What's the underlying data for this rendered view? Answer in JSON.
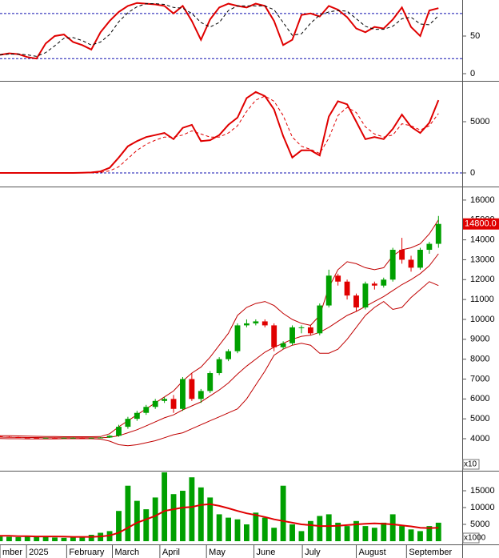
{
  "chart_data": [
    {
      "type": "line",
      "xlim": [
        0,
        50.6
      ],
      "ylim": [
        -8.5,
        97.9
      ],
      "yticks": [
        50,
        0
      ],
      "ref_lines": [
        80,
        20
      ],
      "ref_color": "#1010b0",
      "series": [
        {
          "color": "#e00000",
          "values": [
            25,
            27,
            26,
            22,
            20,
            40,
            50,
            52,
            42,
            38,
            32,
            55,
            70,
            82,
            90,
            94,
            93,
            92,
            90,
            80,
            90,
            70,
            45,
            72,
            88,
            93,
            90,
            88,
            93,
            90,
            70,
            38,
            45,
            78,
            80,
            76,
            90,
            85,
            75,
            60,
            55,
            62,
            60,
            72,
            88,
            62,
            50,
            84,
            87
          ]
        },
        {
          "color": "#000000",
          "dash": true,
          "values": [
            25,
            26,
            26,
            25,
            23,
            28,
            37,
            47,
            48,
            44,
            38,
            42,
            52,
            69,
            81,
            89,
            93,
            93,
            92,
            88,
            87,
            80,
            68,
            62,
            68,
            84,
            90,
            90,
            90,
            90,
            85,
            68,
            51,
            53,
            67,
            78,
            82,
            84,
            83,
            73,
            63,
            59,
            59,
            63,
            73,
            75,
            66,
            65,
            77
          ]
        }
      ]
    },
    {
      "type": "line",
      "xlim": [
        0,
        50.6
      ],
      "ylim": [
        -1250,
        8830
      ],
      "yticks": [
        5000,
        0
      ],
      "ref_lines": [
        0
      ],
      "ref_color": "#1010b0",
      "series": [
        {
          "color": "#e00000",
          "values": [
            0,
            0,
            0,
            0,
            0,
            0,
            0,
            0,
            0,
            20,
            50,
            150,
            500,
            1500,
            2600,
            3100,
            3500,
            3700,
            3900,
            3300,
            4400,
            4700,
            3100,
            3200,
            3700,
            4700,
            5400,
            7300,
            7900,
            7500,
            6200,
            3600,
            1500,
            2200,
            2200,
            1700,
            5500,
            7000,
            6700,
            5000,
            3300,
            3500,
            3300,
            4300,
            5700,
            4500,
            3900,
            4900,
            7100
          ]
        },
        {
          "color": "#e00000",
          "dash": true,
          "values": [
            0,
            0,
            0,
            0,
            0,
            0,
            0,
            0,
            0,
            0,
            10,
            50,
            200,
            600,
            1400,
            2200,
            2800,
            3200,
            3500,
            3500,
            3700,
            4100,
            3800,
            3500,
            3500,
            3900,
            4600,
            6000,
            7100,
            7500,
            7000,
            5600,
            3500,
            2600,
            2300,
            1900,
            3400,
            5600,
            6400,
            5900,
            4500,
            3800,
            3500,
            3700,
            4800,
            4600,
            4200,
            4600,
            5800
          ]
        }
      ]
    },
    {
      "type": "candlestick",
      "xlim": [
        0,
        50.6
      ],
      "ylim": [
        2390,
        16600
      ],
      "yticks": [
        16000,
        15000,
        14000,
        13000,
        12000,
        11000,
        10000,
        9000,
        8000,
        7000,
        6000,
        5000,
        4000
      ],
      "scale_label": "x10",
      "up_color": "#00a000",
      "down_color": "#e00000",
      "open": [
        4120,
        4100,
        4080,
        4060,
        4050,
        4040,
        4050,
        4040,
        4050,
        4050,
        4040,
        4050,
        4060,
        4150,
        4600,
        5000,
        5300,
        5600,
        5900,
        6000,
        5500,
        7000,
        6000,
        6400,
        7300,
        8000,
        8400,
        9700,
        9800,
        9900,
        9700,
        8600,
        8800,
        9600,
        9600,
        9300,
        10700,
        12200,
        11900,
        11200,
        10600,
        11800,
        11700,
        12000,
        13500,
        13000,
        12600,
        13500,
        13800
      ],
      "high": [
        4140,
        4120,
        4100,
        4080,
        4070,
        4060,
        4070,
        4060,
        4070,
        4070,
        4060,
        4080,
        4180,
        4700,
        5100,
        5400,
        5700,
        6000,
        6100,
        6200,
        7100,
        7300,
        6500,
        7400,
        8100,
        8500,
        9800,
        10000,
        10000,
        10000,
        9800,
        8900,
        9700,
        9700,
        9700,
        10800,
        12500,
        12300,
        12000,
        11300,
        11900,
        11900,
        12100,
        13600,
        14100,
        13200,
        13600,
        13900,
        15200
      ],
      "low": [
        4080,
        4060,
        4040,
        4030,
        4020,
        4020,
        4020,
        4020,
        4030,
        4020,
        4020,
        4030,
        4040,
        4100,
        4500,
        4900,
        5200,
        5500,
        5800,
        5300,
        5400,
        5900,
        5800,
        6300,
        7200,
        7900,
        8300,
        9600,
        9700,
        9600,
        8400,
        8500,
        8700,
        9300,
        9200,
        9200,
        10600,
        11700,
        11000,
        10400,
        10500,
        11500,
        11600,
        11900,
        12800,
        12400,
        12500,
        13300,
        13600
      ],
      "close": [
        4100,
        4080,
        4060,
        4050,
        4040,
        4050,
        4040,
        4050,
        4050,
        4040,
        4050,
        4060,
        4150,
        4600,
        5000,
        5300,
        5600,
        5900,
        6000,
        5500,
        7000,
        6000,
        6400,
        7300,
        8000,
        8400,
        9700,
        9800,
        9900,
        9700,
        8600,
        8800,
        9600,
        9600,
        9300,
        10700,
        12200,
        11900,
        11200,
        10600,
        11800,
        11700,
        12000,
        13500,
        13000,
        12600,
        13500,
        13800,
        14800
      ],
      "last_price": {
        "value": 14800,
        "label": "14800.0"
      },
      "series": [
        {
          "color": "#c00000",
          "values": [
            4150,
            4150,
            4140,
            4130,
            4120,
            4110,
            4110,
            4100,
            4100,
            4100,
            4100,
            4110,
            4250,
            4600,
            4900,
            5200,
            5500,
            5800,
            6100,
            6400,
            6900,
            7300,
            7600,
            8100,
            8700,
            9300,
            10200,
            10600,
            10800,
            10900,
            10700,
            10300,
            10000,
            9800,
            9700,
            10200,
            11600,
            12500,
            12900,
            12800,
            12600,
            12500,
            12600,
            13200,
            13500,
            13600,
            13800,
            14300,
            15000
          ]
        },
        {
          "color": "#c00000",
          "values": [
            4080,
            4070,
            4070,
            4060,
            4060,
            4050,
            4050,
            4050,
            4050,
            4050,
            4050,
            4050,
            4070,
            4150,
            4300,
            4450,
            4650,
            4850,
            5050,
            5200,
            5450,
            5650,
            5850,
            6150,
            6450,
            6800,
            7250,
            7650,
            8000,
            8350,
            8600,
            8800,
            9000,
            9150,
            9200,
            9350,
            9600,
            9900,
            10200,
            10400,
            10650,
            10900,
            11150,
            11450,
            11750,
            12000,
            12300,
            12700,
            13300
          ]
        },
        {
          "color": "#c00000",
          "values": [
            4010,
            4000,
            4000,
            3990,
            3990,
            3990,
            3990,
            4000,
            4000,
            4000,
            4000,
            3980,
            3880,
            3700,
            3650,
            3700,
            3800,
            3900,
            4050,
            4200,
            4300,
            4500,
            4700,
            4900,
            5100,
            5300,
            5500,
            6000,
            6700,
            7400,
            8200,
            8500,
            8700,
            8800,
            8700,
            8300,
            8300,
            8500,
            9000,
            9600,
            10200,
            10600,
            10900,
            10500,
            10600,
            11100,
            11500,
            11900,
            11700
          ]
        }
      ]
    },
    {
      "type": "bar",
      "xlim": [
        0,
        50.6
      ],
      "ylim": [
        -950,
        20480
      ],
      "yticks": [
        15000,
        10000,
        5000
      ],
      "scale_label": "x1000",
      "color": "#00a000",
      "values": [
        1400,
        1300,
        1200,
        1500,
        1300,
        1200,
        1100,
        1000,
        1200,
        1300,
        1900,
        2500,
        3000,
        9000,
        16500,
        12000,
        9500,
        13000,
        20500,
        14000,
        15000,
        19000,
        16000,
        13000,
        8000,
        7000,
        6500,
        5000,
        8500,
        7000,
        4000,
        16500,
        5000,
        3000,
        6000,
        7500,
        8000,
        5500,
        4500,
        6000,
        4500,
        4000,
        5500,
        8000,
        4500,
        3500,
        3000,
        4500,
        5500
      ],
      "series": [
        {
          "color": "#e00000",
          "values": [
            1600,
            1600,
            1500,
            1500,
            1400,
            1400,
            1400,
            1350,
            1300,
            1300,
            1300,
            1400,
            1700,
            2500,
            4000,
            5500,
            6500,
            7500,
            9000,
            9500,
            10000,
            10200,
            10800,
            11000,
            10500,
            9800,
            9000,
            8300,
            7800,
            7200,
            6500,
            6000,
            5500,
            5000,
            4800,
            4500,
            4500,
            4600,
            4800,
            5000,
            5200,
            5300,
            5200,
            5000,
            4700,
            4400,
            4000,
            3900,
            4000
          ]
        }
      ],
      "xticks": [
        {
          "value": 0,
          "label": "mber"
        },
        {
          "value": 2.9,
          "label": "2025"
        },
        {
          "value": 7.3,
          "label": "February"
        },
        {
          "value": 12.3,
          "label": "March"
        },
        {
          "value": 17.5,
          "label": "April"
        },
        {
          "value": 22.6,
          "label": "May"
        },
        {
          "value": 27.8,
          "label": "June"
        },
        {
          "value": 33.1,
          "label": "July"
        },
        {
          "value": 39,
          "label": "August"
        },
        {
          "value": 44.5,
          "label": "September"
        }
      ]
    }
  ]
}
